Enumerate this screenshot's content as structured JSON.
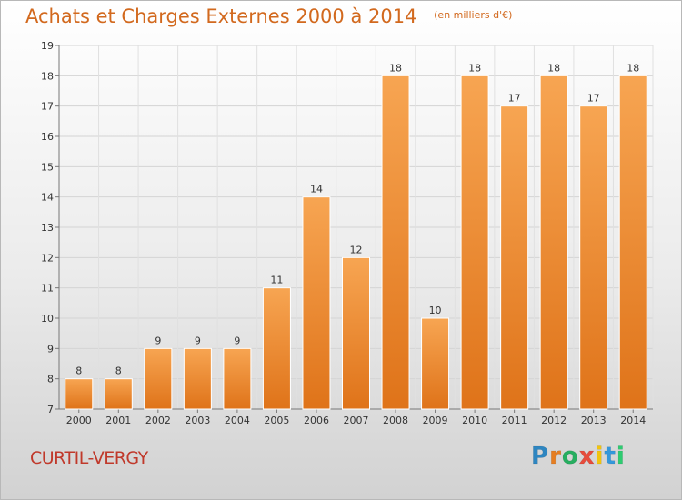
{
  "header": {
    "title": "Achats et Charges Externes 2000 à 2014",
    "unit": "(en milliers d'€)"
  },
  "footer": {
    "city": "CURTIL-VERGY"
  },
  "logo": {
    "letters": [
      "P",
      "r",
      "o",
      "x",
      "i",
      "t",
      "i"
    ],
    "colors": [
      "#2e86c1",
      "#e67e22",
      "#27ae60",
      "#e74c3c",
      "#f1c40f",
      "#3498db",
      "#2ecc71"
    ]
  },
  "chart_data": {
    "type": "bar",
    "title": "Achats et Charges Externes 2000 à 2014",
    "subtitle": "(en milliers d'€)",
    "categories": [
      "2000",
      "2001",
      "2002",
      "2003",
      "2004",
      "2005",
      "2006",
      "2007",
      "2008",
      "2009",
      "2010",
      "2011",
      "2012",
      "2013",
      "2014"
    ],
    "values": [
      8,
      8,
      9,
      9,
      9,
      11,
      14,
      12,
      18,
      10,
      18,
      17,
      18,
      17,
      18
    ],
    "ylim": [
      7,
      19
    ],
    "yticks": [
      7,
      8,
      9,
      10,
      11,
      12,
      13,
      14,
      15,
      16,
      17,
      18,
      19
    ],
    "grid": true,
    "bar_color": "#f0913a"
  }
}
